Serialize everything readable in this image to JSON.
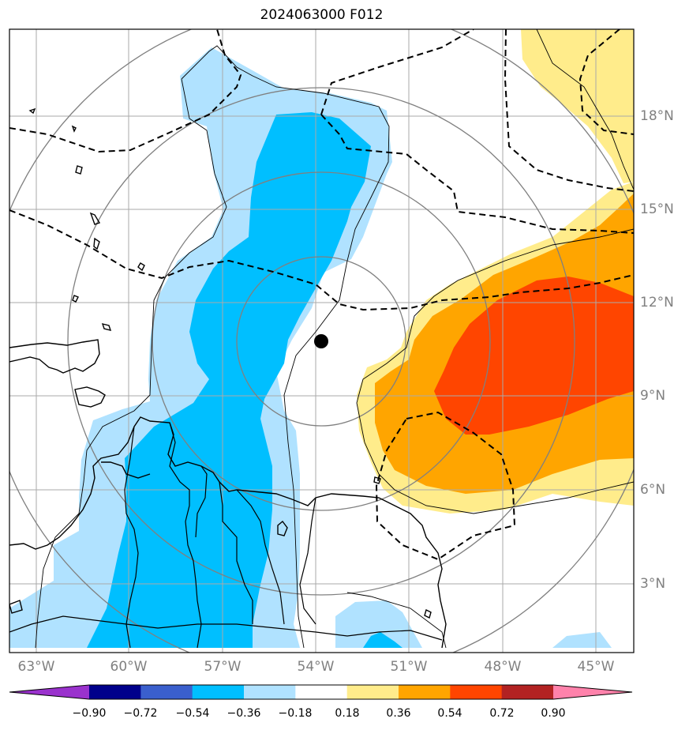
{
  "title": "2024063000 F012",
  "map": {
    "longitude_labels": [
      "63°W",
      "60°W",
      "57°W",
      "54°W",
      "51°W",
      "48°W",
      "45°W"
    ],
    "latitude_labels": [
      "18°N",
      "15°N",
      "12°N",
      "9°N",
      "6°N",
      "3°N"
    ],
    "storm_center": {
      "lon": -54.2,
      "lat": 10.8
    }
  },
  "colorbar": {
    "tick_labels": [
      "−0.90",
      "−0.72",
      "−0.54",
      "−0.36",
      "−0.18",
      "0.18",
      "0.36",
      "0.54",
      "0.72",
      "0.90"
    ],
    "colors": [
      "#9a32cd",
      "#00008b",
      "#3a5fcd",
      "#00bfff",
      "#b0e2ff",
      "#ffffff",
      "#ffec8b",
      "#ffa500",
      "#ff4500",
      "#b22222",
      "#ff82ab"
    ]
  }
}
